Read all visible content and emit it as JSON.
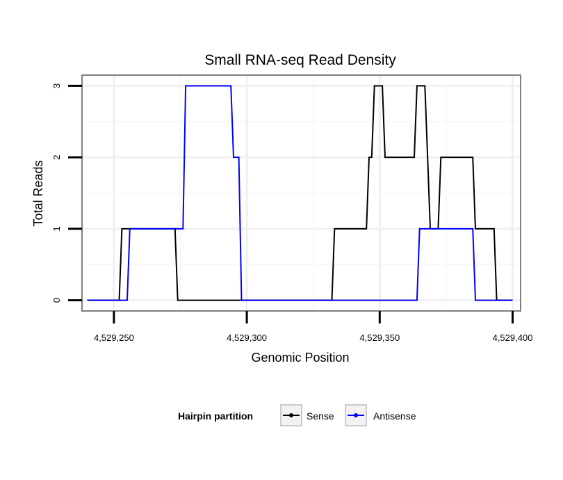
{
  "chart_data": {
    "type": "line",
    "title": "Small RNA-seq Read Density",
    "xlabel": "Genomic Position",
    "ylabel": "Total Reads",
    "xlim": [
      4529238,
      4529403
    ],
    "ylim": [
      -0.15,
      3.15
    ],
    "x_ticks": [
      4529250,
      4529300,
      4529350,
      4529400
    ],
    "x_tick_labels": [
      "4,529,250",
      "4,529,300",
      "4,529,350",
      "4,529,400"
    ],
    "y_ticks": [
      0,
      1,
      2,
      3
    ],
    "y_tick_labels": [
      "0",
      "1",
      "2",
      "3"
    ],
    "grid": true,
    "legend": {
      "title": "Hairpin partition",
      "placement": "bottom",
      "entries": [
        "Sense",
        "Antisense"
      ]
    },
    "series": [
      {
        "name": "Sense",
        "color": "#000000",
        "x": [
          4529240,
          4529252,
          4529253,
          4529273,
          4529274,
          4529332,
          4529333,
          4529345,
          4529346,
          4529347,
          4529348,
          4529351,
          4529352,
          4529363,
          4529364,
          4529367,
          4529368,
          4529369,
          4529372,
          4529373,
          4529385,
          4529386,
          4529393,
          4529394,
          4529400
        ],
        "values": [
          0,
          0,
          1,
          1,
          0,
          0,
          1,
          1,
          2,
          2,
          3,
          3,
          2,
          2,
          3,
          3,
          2,
          1,
          1,
          2,
          2,
          1,
          1,
          0,
          0
        ]
      },
      {
        "name": "Antisense",
        "color": "#0000ff",
        "x": [
          4529240,
          4529255,
          4529256,
          4529276,
          4529277,
          4529294,
          4529295,
          4529297,
          4529298,
          4529364,
          4529365,
          4529385,
          4529386,
          4529400
        ],
        "values": [
          0,
          0,
          1,
          1,
          3,
          3,
          2,
          2,
          0,
          0,
          1,
          1,
          0,
          0
        ]
      }
    ]
  }
}
